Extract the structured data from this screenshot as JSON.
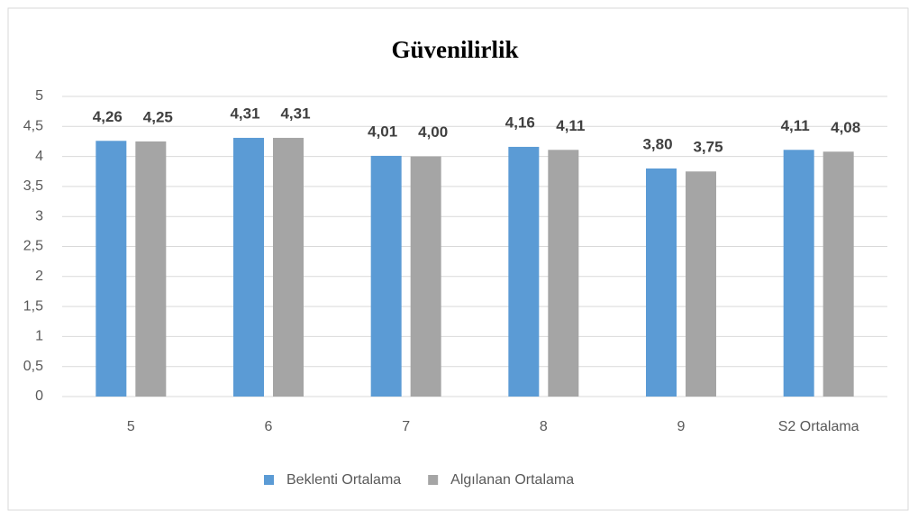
{
  "chart_data": {
    "type": "bar",
    "title": "Güvenilirlik",
    "categories": [
      "5",
      "6",
      "7",
      "8",
      "9",
      "S2 Ortalama"
    ],
    "series": [
      {
        "name": "Beklenti Ortalama",
        "color": "#5b9bd5",
        "values": [
          4.26,
          4.31,
          4.01,
          4.16,
          3.8,
          4.11
        ],
        "value_labels": [
          "4,26",
          "4,31",
          "4,01",
          "4,16",
          "3,80",
          "4,11"
        ]
      },
      {
        "name": "Algılanan Ortalama",
        "color": "#a5a5a5",
        "values": [
          4.25,
          4.31,
          4.0,
          4.11,
          3.75,
          4.08
        ],
        "value_labels": [
          "4,25",
          "4,31",
          "4,00",
          "4,11",
          "3,75",
          "4,08"
        ]
      }
    ],
    "ylim": [
      0,
      5
    ],
    "yticks": [
      0,
      {
        "value": 0.5,
        "label": "0,5"
      },
      1,
      {
        "value": 1.5,
        "label": "1,5"
      },
      2,
      {
        "value": 2.5,
        "label": "2,5"
      },
      3,
      {
        "value": 3.5,
        "label": "3,5"
      },
      4,
      {
        "value": 4.5,
        "label": "4,5"
      },
      5
    ],
    "grid": true,
    "legend": "bottom"
  }
}
